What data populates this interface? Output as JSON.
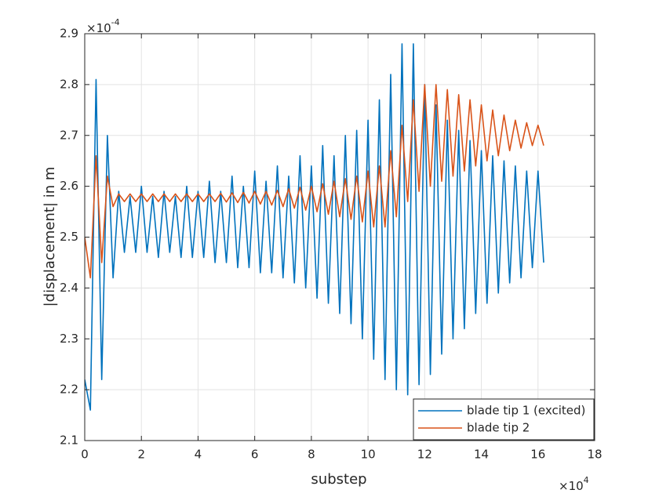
{
  "chart_data": {
    "type": "line",
    "x_label": "substep",
    "y_label": "|displacement| in m",
    "x_exponent": {
      "base": "×10",
      "exponent": "4"
    },
    "y_exponent": {
      "base": "×10",
      "exponent": "-4"
    },
    "x": [
      0,
      0.2,
      0.4,
      0.6,
      0.8,
      1.0,
      1.2,
      1.4,
      1.6,
      1.8,
      2.0,
      2.2,
      2.4,
      2.6,
      2.8,
      3.0,
      3.2,
      3.4,
      3.6,
      3.8,
      4.0,
      4.2,
      4.4,
      4.6,
      4.8,
      5.0,
      5.2,
      5.4,
      5.6,
      5.8,
      6.0,
      6.2,
      6.4,
      6.6,
      6.8,
      7.0,
      7.2,
      7.4,
      7.6,
      7.8,
      8.0,
      8.2,
      8.4,
      8.6,
      8.8,
      9.0,
      9.2,
      9.4,
      9.6,
      9.8,
      10.0,
      10.2,
      10.4,
      10.6,
      10.8,
      11.0,
      11.2,
      11.4,
      11.6,
      11.8,
      12.0,
      12.2,
      12.4,
      12.6,
      12.8,
      13.0,
      13.2,
      13.4,
      13.6,
      13.8,
      14.0,
      14.2,
      14.4,
      14.6,
      14.8,
      15.0,
      15.2,
      15.4,
      15.6,
      15.8,
      16.0,
      16.2
    ],
    "series": [
      {
        "name": "blade tip 1 (excited)",
        "color": "#0072bd",
        "values": [
          2.22,
          2.16,
          2.81,
          2.22,
          2.7,
          2.42,
          2.59,
          2.47,
          2.58,
          2.47,
          2.6,
          2.47,
          2.58,
          2.46,
          2.59,
          2.47,
          2.58,
          2.46,
          2.6,
          2.46,
          2.59,
          2.46,
          2.61,
          2.45,
          2.59,
          2.45,
          2.62,
          2.44,
          2.6,
          2.44,
          2.63,
          2.43,
          2.61,
          2.43,
          2.64,
          2.42,
          2.62,
          2.41,
          2.66,
          2.4,
          2.64,
          2.38,
          2.68,
          2.37,
          2.66,
          2.35,
          2.7,
          2.33,
          2.71,
          2.3,
          2.73,
          2.26,
          2.77,
          2.22,
          2.82,
          2.2,
          2.88,
          2.19,
          2.88,
          2.21,
          2.8,
          2.23,
          2.76,
          2.27,
          2.73,
          2.3,
          2.71,
          2.32,
          2.69,
          2.35,
          2.67,
          2.37,
          2.66,
          2.39,
          2.65,
          2.41,
          2.64,
          2.42,
          2.63,
          2.44,
          2.63,
          2.45
        ]
      },
      {
        "name": "blade tip 2",
        "color": "#d95319",
        "values": [
          2.5,
          2.42,
          2.66,
          2.45,
          2.62,
          2.56,
          2.585,
          2.57,
          2.585,
          2.57,
          2.585,
          2.57,
          2.585,
          2.57,
          2.585,
          2.57,
          2.585,
          2.57,
          2.585,
          2.57,
          2.585,
          2.57,
          2.585,
          2.57,
          2.586,
          2.569,
          2.587,
          2.568,
          2.588,
          2.567,
          2.59,
          2.565,
          2.59,
          2.563,
          2.592,
          2.56,
          2.595,
          2.557,
          2.598,
          2.553,
          2.6,
          2.55,
          2.605,
          2.545,
          2.61,
          2.54,
          2.615,
          2.535,
          2.62,
          2.53,
          2.63,
          2.52,
          2.64,
          2.52,
          2.67,
          2.54,
          2.72,
          2.57,
          2.77,
          2.59,
          2.8,
          2.6,
          2.8,
          2.61,
          2.79,
          2.62,
          2.78,
          2.63,
          2.77,
          2.64,
          2.76,
          2.65,
          2.75,
          2.66,
          2.74,
          2.67,
          2.73,
          2.675,
          2.725,
          2.68,
          2.72,
          2.68
        ]
      }
    ],
    "xlim": [
      0,
      18
    ],
    "xticks": [
      0,
      2,
      4,
      6,
      8,
      10,
      12,
      14,
      16,
      18
    ],
    "ylim": [
      2.1,
      2.9
    ],
    "yticks": [
      2.1,
      2.2,
      2.3,
      2.4,
      2.5,
      2.6,
      2.7,
      2.8,
      2.9
    ],
    "grid": true,
    "legend": "southeast"
  }
}
